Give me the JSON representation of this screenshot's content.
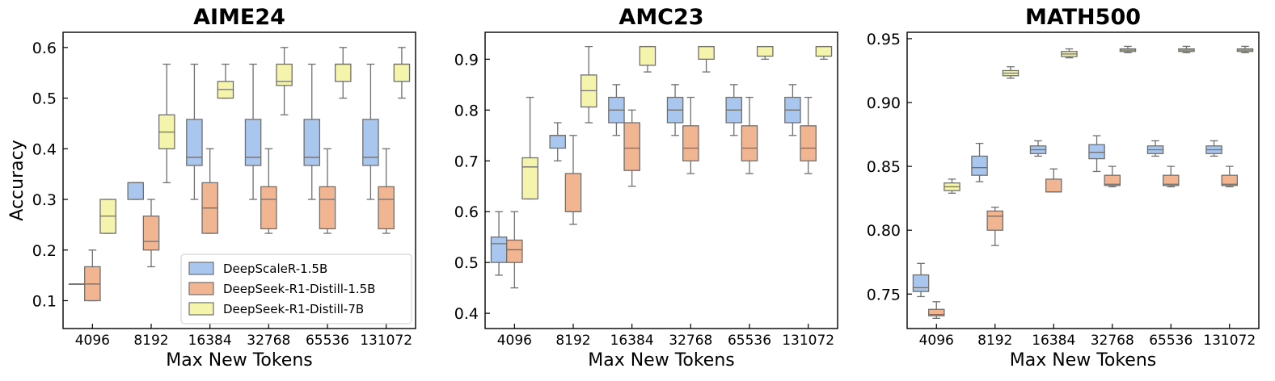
{
  "colors": {
    "DeepScaleR-1.5B": "#a9c7ee",
    "DeepSeek-R1-Distill-1.5B": "#f2b592",
    "DeepSeek-R1-Distill-7B": "#f5f4ad",
    "edge": "#6f6f6f"
  },
  "chart_data": [
    {
      "type": "box",
      "title": "AIME24",
      "xlabel": "Max New Tokens",
      "ylabel": "Accuracy",
      "categories": [
        "4096",
        "8192",
        "16384",
        "32768",
        "65536",
        "131072"
      ],
      "ylim": [
        0.045,
        0.63
      ],
      "yticks": [
        0.1,
        0.2,
        0.3,
        0.4,
        0.5,
        0.6
      ],
      "ytick_labels": [
        "0.1",
        "0.2",
        "0.3",
        "0.4",
        "0.5",
        "0.6"
      ],
      "legend": {
        "location": "lower-right",
        "entries": [
          "DeepScaleR-1.5B",
          "DeepSeek-R1-Distill-1.5B",
          "DeepSeek-R1-Distill-7B"
        ]
      },
      "series": [
        {
          "name": "DeepScaleR-1.5B",
          "boxes": [
            {
              "min": 0.133,
              "q1": 0.133,
              "median": 0.133,
              "q3": 0.133,
              "max": 0.133
            },
            {
              "min": 0.3,
              "q1": 0.3,
              "median": 0.333,
              "q3": 0.333,
              "max": 0.333
            },
            {
              "min": 0.3,
              "q1": 0.367,
              "median": 0.383,
              "q3": 0.458,
              "max": 0.567
            },
            {
              "min": 0.3,
              "q1": 0.367,
              "median": 0.383,
              "q3": 0.458,
              "max": 0.567
            },
            {
              "min": 0.3,
              "q1": 0.367,
              "median": 0.383,
              "q3": 0.458,
              "max": 0.567
            },
            {
              "min": 0.3,
              "q1": 0.367,
              "median": 0.383,
              "q3": 0.458,
              "max": 0.567
            }
          ]
        },
        {
          "name": "DeepSeek-R1-Distill-1.5B",
          "boxes": [
            {
              "min": 0.1,
              "q1": 0.1,
              "median": 0.133,
              "q3": 0.167,
              "max": 0.2
            },
            {
              "min": 0.167,
              "q1": 0.2,
              "median": 0.217,
              "q3": 0.267,
              "max": 0.3
            },
            {
              "min": 0.233,
              "q1": 0.233,
              "median": 0.283,
              "q3": 0.333,
              "max": 0.4
            },
            {
              "min": 0.233,
              "q1": 0.242,
              "median": 0.3,
              "q3": 0.325,
              "max": 0.4
            },
            {
              "min": 0.233,
              "q1": 0.242,
              "median": 0.3,
              "q3": 0.325,
              "max": 0.4
            },
            {
              "min": 0.233,
              "q1": 0.242,
              "median": 0.3,
              "q3": 0.325,
              "max": 0.4
            }
          ]
        },
        {
          "name": "DeepSeek-R1-Distill-7B",
          "boxes": [
            {
              "min": 0.233,
              "q1": 0.233,
              "median": 0.267,
              "q3": 0.3,
              "max": 0.3
            },
            {
              "min": 0.333,
              "q1": 0.4,
              "median": 0.433,
              "q3": 0.467,
              "max": 0.567
            },
            {
              "min": 0.5,
              "q1": 0.5,
              "median": 0.517,
              "q3": 0.533,
              "max": 0.567
            },
            {
              "min": 0.467,
              "q1": 0.525,
              "median": 0.533,
              "q3": 0.567,
              "max": 0.6
            },
            {
              "min": 0.5,
              "q1": 0.533,
              "median": 0.567,
              "q3": 0.567,
              "max": 0.6
            },
            {
              "min": 0.5,
              "q1": 0.533,
              "median": 0.567,
              "q3": 0.567,
              "max": 0.6
            }
          ]
        }
      ]
    },
    {
      "type": "box",
      "title": "AMC23",
      "xlabel": "Max New Tokens",
      "ylabel": "",
      "categories": [
        "4096",
        "8192",
        "16384",
        "32768",
        "65536",
        "131072"
      ],
      "ylim": [
        0.37,
        0.953
      ],
      "yticks": [
        0.4,
        0.5,
        0.6,
        0.7,
        0.8,
        0.9
      ],
      "ytick_labels": [
        "0.4",
        "0.5",
        "0.6",
        "0.7",
        "0.8",
        "0.9"
      ],
      "series": [
        {
          "name": "DeepScaleR-1.5B",
          "boxes": [
            {
              "min": 0.475,
              "q1": 0.5,
              "median": 0.537,
              "q3": 0.55,
              "max": 0.6
            },
            {
              "min": 0.7,
              "q1": 0.725,
              "median": 0.75,
              "q3": 0.75,
              "max": 0.775
            },
            {
              "min": 0.75,
              "q1": 0.775,
              "median": 0.8,
              "q3": 0.825,
              "max": 0.85
            },
            {
              "min": 0.75,
              "q1": 0.775,
              "median": 0.8,
              "q3": 0.825,
              "max": 0.85
            },
            {
              "min": 0.75,
              "q1": 0.775,
              "median": 0.8,
              "q3": 0.825,
              "max": 0.85
            },
            {
              "min": 0.75,
              "q1": 0.775,
              "median": 0.8,
              "q3": 0.825,
              "max": 0.85
            }
          ]
        },
        {
          "name": "DeepSeek-R1-Distill-1.5B",
          "boxes": [
            {
              "min": 0.45,
              "q1": 0.5,
              "median": 0.525,
              "q3": 0.544,
              "max": 0.6
            },
            {
              "min": 0.575,
              "q1": 0.6,
              "median": 0.6,
              "q3": 0.675,
              "max": 0.75
            },
            {
              "min": 0.65,
              "q1": 0.681,
              "median": 0.725,
              "q3": 0.775,
              "max": 0.8
            },
            {
              "min": 0.675,
              "q1": 0.7,
              "median": 0.725,
              "q3": 0.769,
              "max": 0.825
            },
            {
              "min": 0.675,
              "q1": 0.7,
              "median": 0.725,
              "q3": 0.769,
              "max": 0.825
            },
            {
              "min": 0.675,
              "q1": 0.7,
              "median": 0.725,
              "q3": 0.769,
              "max": 0.825
            }
          ]
        },
        {
          "name": "DeepSeek-R1-Distill-7B",
          "boxes": [
            {
              "min": 0.625,
              "q1": 0.625,
              "median": 0.688,
              "q3": 0.706,
              "max": 0.825
            },
            {
              "min": 0.775,
              "q1": 0.806,
              "median": 0.838,
              "q3": 0.869,
              "max": 0.925
            },
            {
              "min": 0.875,
              "q1": 0.888,
              "median": 0.925,
              "q3": 0.925,
              "max": 0.925
            },
            {
              "min": 0.875,
              "q1": 0.9,
              "median": 0.925,
              "q3": 0.925,
              "max": 0.925
            },
            {
              "min": 0.9,
              "q1": 0.906,
              "median": 0.925,
              "q3": 0.925,
              "max": 0.925
            },
            {
              "min": 0.9,
              "q1": 0.906,
              "median": 0.925,
              "q3": 0.925,
              "max": 0.925
            }
          ]
        }
      ]
    },
    {
      "type": "box",
      "title": "MATH500",
      "xlabel": "Max New Tokens",
      "ylabel": "",
      "categories": [
        "4096",
        "8192",
        "16384",
        "32768",
        "65536",
        "131072"
      ],
      "ylim": [
        0.723,
        0.955
      ],
      "yticks": [
        0.75,
        0.8,
        0.85,
        0.9,
        0.95
      ],
      "ytick_labels": [
        "0.75",
        "0.80",
        "0.85",
        "0.90",
        "0.95"
      ],
      "series": [
        {
          "name": "DeepScaleR-1.5B",
          "boxes": [
            {
              "min": 0.748,
              "q1": 0.752,
              "median": 0.755,
              "q3": 0.765,
              "max": 0.774
            },
            {
              "min": 0.838,
              "q1": 0.843,
              "median": 0.849,
              "q3": 0.858,
              "max": 0.868
            },
            {
              "min": 0.858,
              "q1": 0.86,
              "median": 0.863,
              "q3": 0.866,
              "max": 0.87
            },
            {
              "min": 0.846,
              "q1": 0.856,
              "median": 0.861,
              "q3": 0.867,
              "max": 0.874
            },
            {
              "min": 0.858,
              "q1": 0.86,
              "median": 0.863,
              "q3": 0.866,
              "max": 0.87
            },
            {
              "min": 0.858,
              "q1": 0.86,
              "median": 0.863,
              "q3": 0.866,
              "max": 0.87
            }
          ]
        },
        {
          "name": "DeepSeek-R1-Distill-1.5B",
          "boxes": [
            {
              "min": 0.731,
              "q1": 0.733,
              "median": 0.734,
              "q3": 0.738,
              "max": 0.744
            },
            {
              "min": 0.788,
              "q1": 0.8,
              "median": 0.811,
              "q3": 0.815,
              "max": 0.818
            },
            {
              "min": 0.83,
              "q1": 0.83,
              "median": 0.83,
              "q3": 0.84,
              "max": 0.848
            },
            {
              "min": 0.834,
              "q1": 0.835,
              "median": 0.836,
              "q3": 0.843,
              "max": 0.85
            },
            {
              "min": 0.834,
              "q1": 0.835,
              "median": 0.836,
              "q3": 0.843,
              "max": 0.85
            },
            {
              "min": 0.834,
              "q1": 0.835,
              "median": 0.836,
              "q3": 0.843,
              "max": 0.85
            }
          ]
        },
        {
          "name": "DeepSeek-R1-Distill-7B",
          "boxes": [
            {
              "min": 0.829,
              "q1": 0.831,
              "median": 0.834,
              "q3": 0.837,
              "max": 0.84
            },
            {
              "min": 0.919,
              "q1": 0.921,
              "median": 0.923,
              "q3": 0.925,
              "max": 0.928
            },
            {
              "min": 0.935,
              "q1": 0.936,
              "median": 0.938,
              "q3": 0.94,
              "max": 0.942
            },
            {
              "min": 0.939,
              "q1": 0.94,
              "median": 0.941,
              "q3": 0.942,
              "max": 0.944
            },
            {
              "min": 0.939,
              "q1": 0.94,
              "median": 0.941,
              "q3": 0.942,
              "max": 0.944
            },
            {
              "min": 0.939,
              "q1": 0.94,
              "median": 0.941,
              "q3": 0.942,
              "max": 0.944
            }
          ]
        }
      ]
    }
  ]
}
